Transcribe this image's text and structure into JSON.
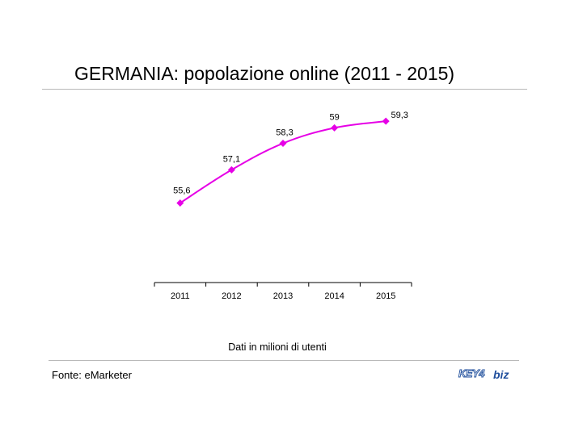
{
  "page": {
    "title": "GERMANIA: popolazione online (2011 - 2015)",
    "caption": "Dati in milioni di utenti",
    "source": "Fonte: eMarketer",
    "logo_text_left": "KEY4",
    "logo_text_right": "biz"
  },
  "colors": {
    "series": "#e600e6",
    "axis": "#000000",
    "rule": "#b8b8b8",
    "logo_blue": "#1f4e9c"
  },
  "chart_data": {
    "type": "line",
    "categories": [
      "2011",
      "2012",
      "2013",
      "2014",
      "2015"
    ],
    "series": [
      {
        "values": [
          55.6,
          57.1,
          58.3,
          59.0,
          59.3
        ]
      }
    ],
    "data_labels": [
      "55,6",
      "57,1",
      "58,3",
      "59",
      "59,3"
    ],
    "title": "GERMANIA: popolazione online (2011 - 2015)",
    "xlabel": "",
    "ylabel": "",
    "ylim": [
      52,
      60
    ],
    "grid": false,
    "legend": "none",
    "y_axis_visible": false,
    "marker": "diamond"
  }
}
